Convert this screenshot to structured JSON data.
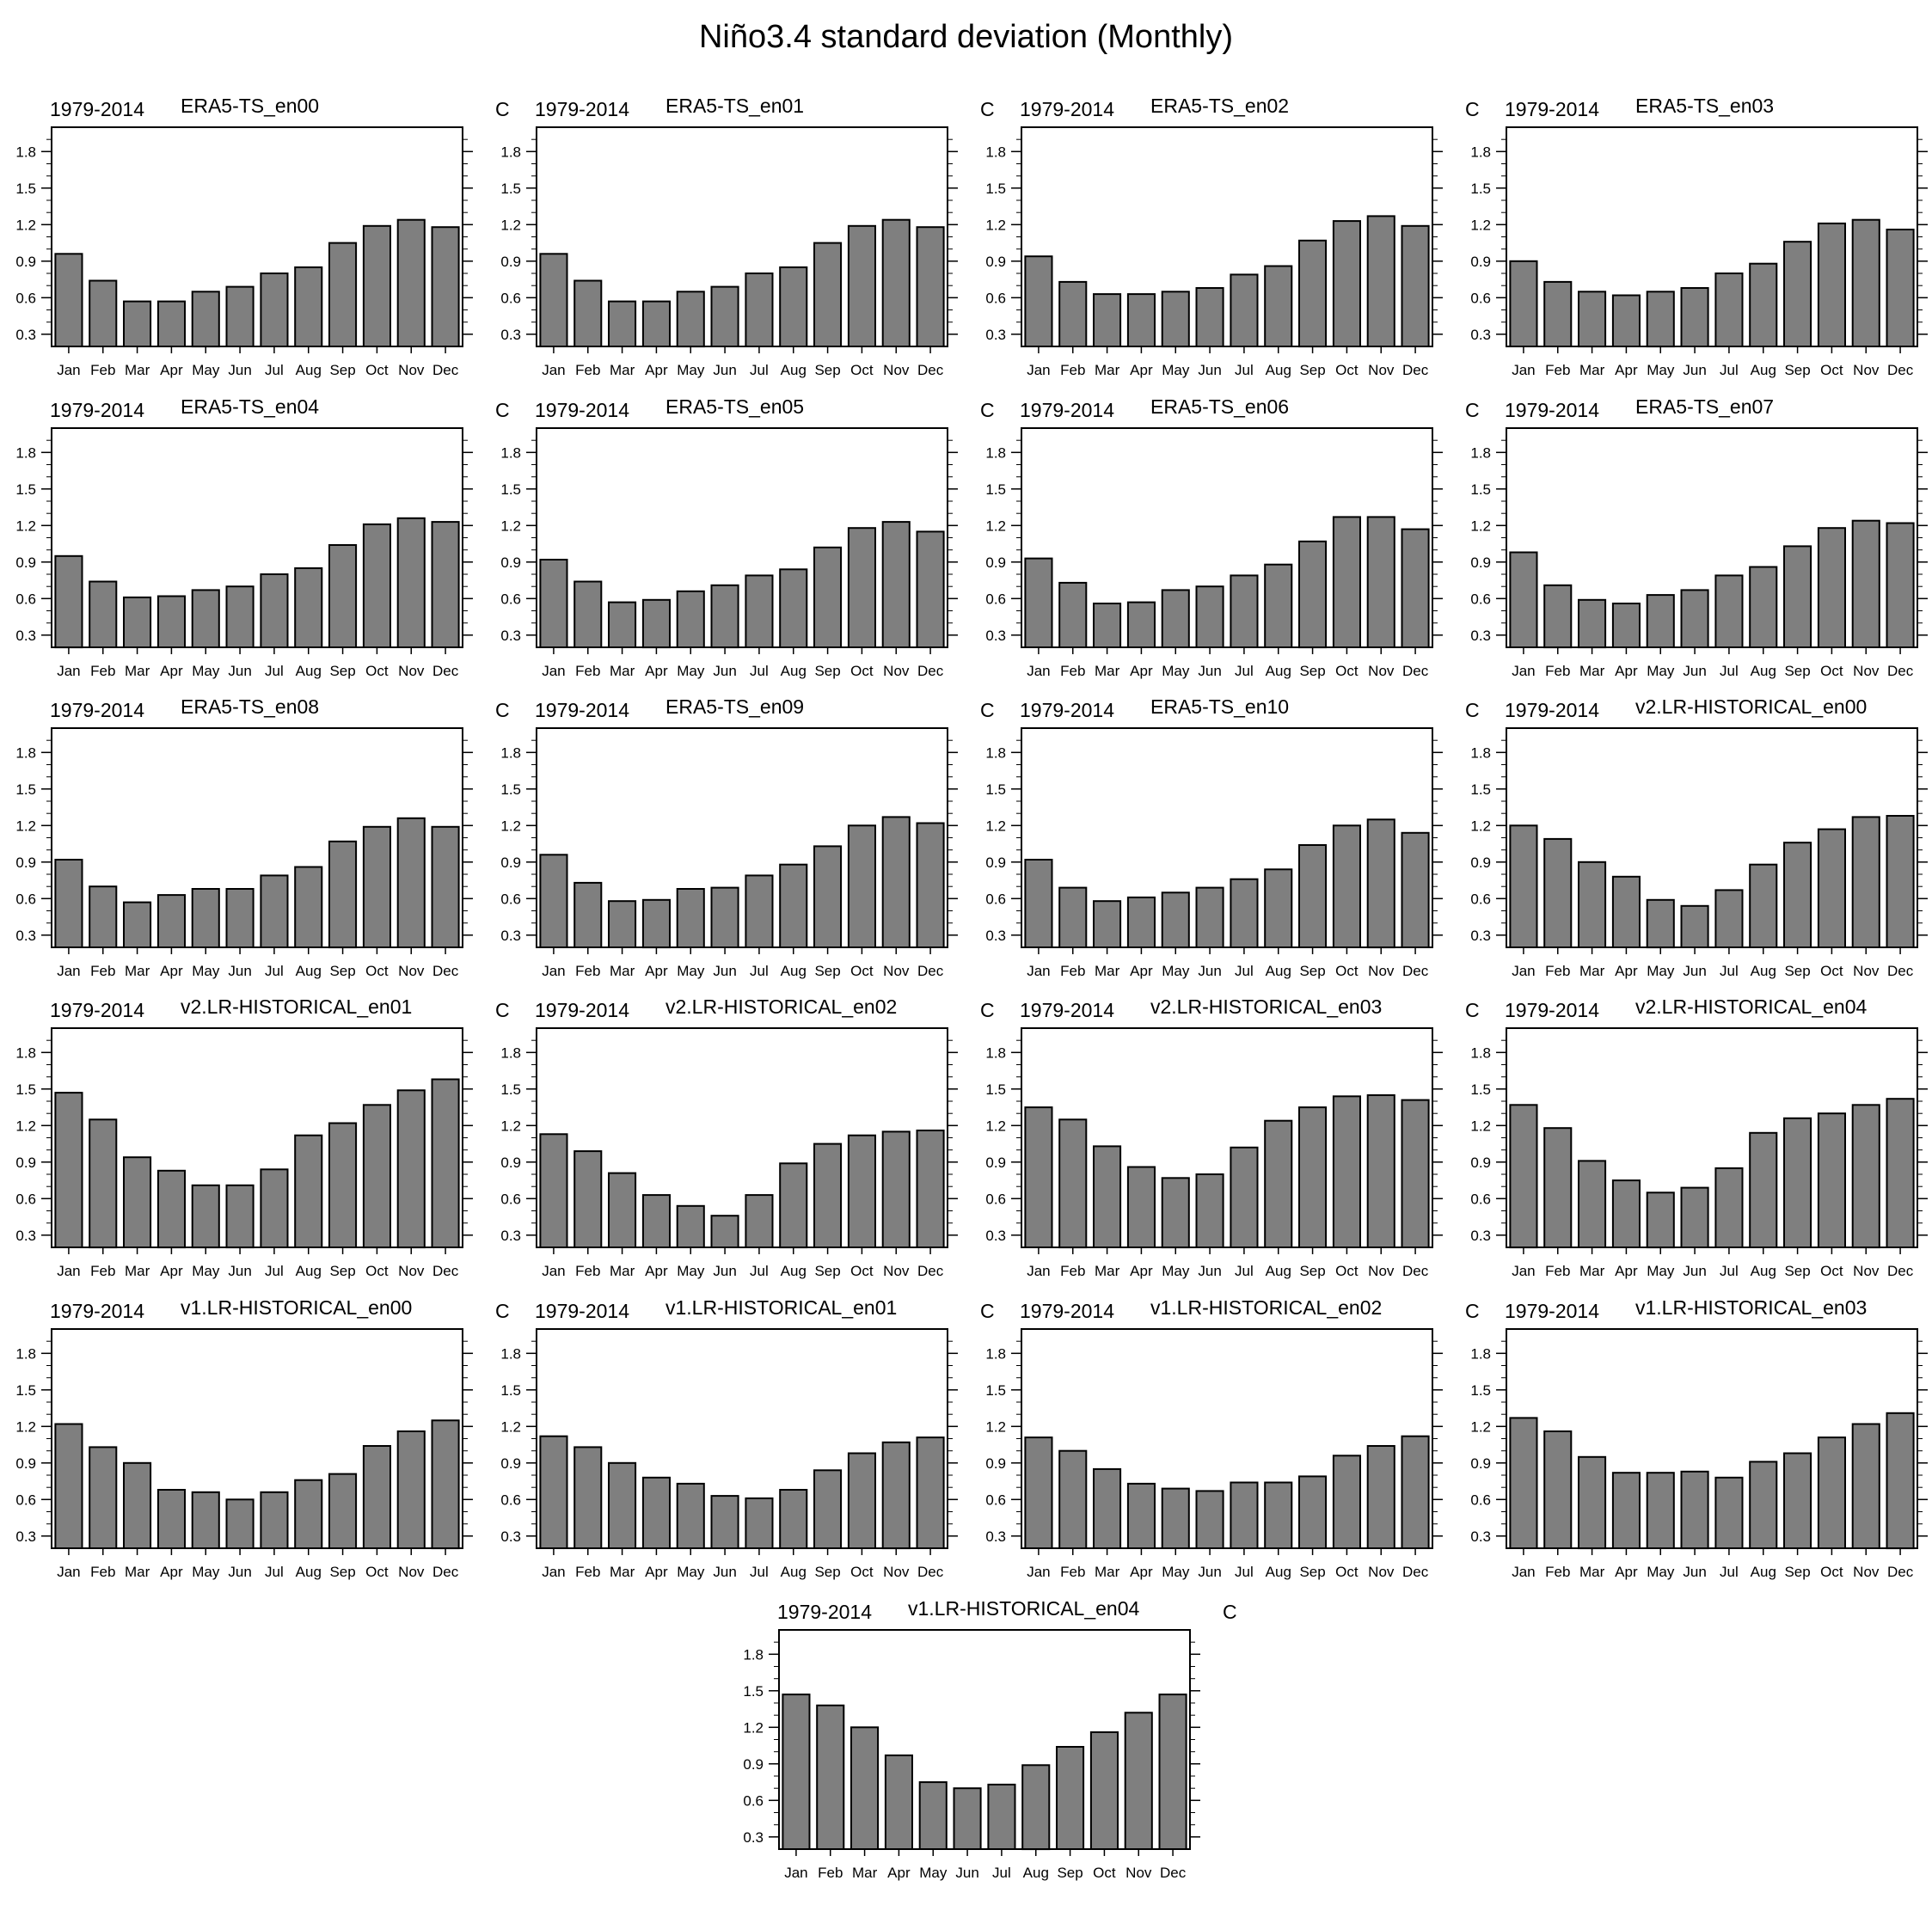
{
  "figure": {
    "title": "Niño3.4 standard deviation (Monthly)"
  },
  "chart_data": [
    {
      "type": "bar",
      "period": "1979-2014",
      "title": "ERA5-TS_en00",
      "units": "C",
      "categories": [
        "Jan",
        "Feb",
        "Mar",
        "Apr",
        "May",
        "Jun",
        "Jul",
        "Aug",
        "Sep",
        "Oct",
        "Nov",
        "Dec"
      ],
      "values": [
        0.96,
        0.74,
        0.57,
        0.57,
        0.65,
        0.69,
        0.8,
        0.85,
        1.05,
        1.19,
        1.24,
        1.18
      ],
      "ylim": [
        0.2,
        2.0
      ],
      "yticks": [
        "0.3",
        "0.6",
        "0.9",
        "1.2",
        "1.5",
        "1.8"
      ]
    },
    {
      "type": "bar",
      "period": "1979-2014",
      "title": "ERA5-TS_en01",
      "units": "C",
      "categories": [
        "Jan",
        "Feb",
        "Mar",
        "Apr",
        "May",
        "Jun",
        "Jul",
        "Aug",
        "Sep",
        "Oct",
        "Nov",
        "Dec"
      ],
      "values": [
        0.96,
        0.74,
        0.57,
        0.57,
        0.65,
        0.69,
        0.8,
        0.85,
        1.05,
        1.19,
        1.24,
        1.18
      ],
      "ylim": [
        0.2,
        2.0
      ],
      "yticks": [
        "0.3",
        "0.6",
        "0.9",
        "1.2",
        "1.5",
        "1.8"
      ]
    },
    {
      "type": "bar",
      "period": "1979-2014",
      "title": "ERA5-TS_en02",
      "units": "C",
      "categories": [
        "Jan",
        "Feb",
        "Mar",
        "Apr",
        "May",
        "Jun",
        "Jul",
        "Aug",
        "Sep",
        "Oct",
        "Nov",
        "Dec"
      ],
      "values": [
        0.94,
        0.73,
        0.63,
        0.63,
        0.65,
        0.68,
        0.79,
        0.86,
        1.07,
        1.23,
        1.27,
        1.19
      ],
      "ylim": [
        0.2,
        2.0
      ],
      "yticks": [
        "0.3",
        "0.6",
        "0.9",
        "1.2",
        "1.5",
        "1.8"
      ]
    },
    {
      "type": "bar",
      "period": "1979-2014",
      "title": "ERA5-TS_en03",
      "units": "C",
      "categories": [
        "Jan",
        "Feb",
        "Mar",
        "Apr",
        "May",
        "Jun",
        "Jul",
        "Aug",
        "Sep",
        "Oct",
        "Nov",
        "Dec"
      ],
      "values": [
        0.9,
        0.73,
        0.65,
        0.62,
        0.65,
        0.68,
        0.8,
        0.88,
        1.06,
        1.21,
        1.24,
        1.16
      ],
      "ylim": [
        0.2,
        2.0
      ],
      "yticks": [
        "0.3",
        "0.6",
        "0.9",
        "1.2",
        "1.5",
        "1.8"
      ]
    },
    {
      "type": "bar",
      "period": "1979-2014",
      "title": "ERA5-TS_en04",
      "units": "C",
      "categories": [
        "Jan",
        "Feb",
        "Mar",
        "Apr",
        "May",
        "Jun",
        "Jul",
        "Aug",
        "Sep",
        "Oct",
        "Nov",
        "Dec"
      ],
      "values": [
        0.95,
        0.74,
        0.61,
        0.62,
        0.67,
        0.7,
        0.8,
        0.85,
        1.04,
        1.21,
        1.26,
        1.23
      ],
      "ylim": [
        0.2,
        2.0
      ],
      "yticks": [
        "0.3",
        "0.6",
        "0.9",
        "1.2",
        "1.5",
        "1.8"
      ]
    },
    {
      "type": "bar",
      "period": "1979-2014",
      "title": "ERA5-TS_en05",
      "units": "C",
      "categories": [
        "Jan",
        "Feb",
        "Mar",
        "Apr",
        "May",
        "Jun",
        "Jul",
        "Aug",
        "Sep",
        "Oct",
        "Nov",
        "Dec"
      ],
      "values": [
        0.92,
        0.74,
        0.57,
        0.59,
        0.66,
        0.71,
        0.79,
        0.84,
        1.02,
        1.18,
        1.23,
        1.15
      ],
      "ylim": [
        0.2,
        2.0
      ],
      "yticks": [
        "0.3",
        "0.6",
        "0.9",
        "1.2",
        "1.5",
        "1.8"
      ]
    },
    {
      "type": "bar",
      "period": "1979-2014",
      "title": "ERA5-TS_en06",
      "units": "C",
      "categories": [
        "Jan",
        "Feb",
        "Mar",
        "Apr",
        "May",
        "Jun",
        "Jul",
        "Aug",
        "Sep",
        "Oct",
        "Nov",
        "Dec"
      ],
      "values": [
        0.93,
        0.73,
        0.56,
        0.57,
        0.67,
        0.7,
        0.79,
        0.88,
        1.07,
        1.27,
        1.27,
        1.17
      ],
      "ylim": [
        0.2,
        2.0
      ],
      "yticks": [
        "0.3",
        "0.6",
        "0.9",
        "1.2",
        "1.5",
        "1.8"
      ]
    },
    {
      "type": "bar",
      "period": "1979-2014",
      "title": "ERA5-TS_en07",
      "units": "C",
      "categories": [
        "Jan",
        "Feb",
        "Mar",
        "Apr",
        "May",
        "Jun",
        "Jul",
        "Aug",
        "Sep",
        "Oct",
        "Nov",
        "Dec"
      ],
      "values": [
        0.98,
        0.71,
        0.59,
        0.56,
        0.63,
        0.67,
        0.79,
        0.86,
        1.03,
        1.18,
        1.24,
        1.22
      ],
      "ylim": [
        0.2,
        2.0
      ],
      "yticks": [
        "0.3",
        "0.6",
        "0.9",
        "1.2",
        "1.5",
        "1.8"
      ]
    },
    {
      "type": "bar",
      "period": "1979-2014",
      "title": "ERA5-TS_en08",
      "units": "C",
      "categories": [
        "Jan",
        "Feb",
        "Mar",
        "Apr",
        "May",
        "Jun",
        "Jul",
        "Aug",
        "Sep",
        "Oct",
        "Nov",
        "Dec"
      ],
      "values": [
        0.92,
        0.7,
        0.57,
        0.63,
        0.68,
        0.68,
        0.79,
        0.86,
        1.07,
        1.19,
        1.26,
        1.19
      ],
      "ylim": [
        0.2,
        2.0
      ],
      "yticks": [
        "0.3",
        "0.6",
        "0.9",
        "1.2",
        "1.5",
        "1.8"
      ]
    },
    {
      "type": "bar",
      "period": "1979-2014",
      "title": "ERA5-TS_en09",
      "units": "C",
      "categories": [
        "Jan",
        "Feb",
        "Mar",
        "Apr",
        "May",
        "Jun",
        "Jul",
        "Aug",
        "Sep",
        "Oct",
        "Nov",
        "Dec"
      ],
      "values": [
        0.96,
        0.73,
        0.58,
        0.59,
        0.68,
        0.69,
        0.79,
        0.88,
        1.03,
        1.2,
        1.27,
        1.22
      ],
      "ylim": [
        0.2,
        2.0
      ],
      "yticks": [
        "0.3",
        "0.6",
        "0.9",
        "1.2",
        "1.5",
        "1.8"
      ]
    },
    {
      "type": "bar",
      "period": "1979-2014",
      "title": "ERA5-TS_en10",
      "units": "C",
      "categories": [
        "Jan",
        "Feb",
        "Mar",
        "Apr",
        "May",
        "Jun",
        "Jul",
        "Aug",
        "Sep",
        "Oct",
        "Nov",
        "Dec"
      ],
      "values": [
        0.92,
        0.69,
        0.58,
        0.61,
        0.65,
        0.69,
        0.76,
        0.84,
        1.04,
        1.2,
        1.25,
        1.14
      ],
      "ylim": [
        0.2,
        2.0
      ],
      "yticks": [
        "0.3",
        "0.6",
        "0.9",
        "1.2",
        "1.5",
        "1.8"
      ]
    },
    {
      "type": "bar",
      "period": "1979-2014",
      "title": "v2.LR-HISTORICAL_en00",
      "units": "C",
      "categories": [
        "Jan",
        "Feb",
        "Mar",
        "Apr",
        "May",
        "Jun",
        "Jul",
        "Aug",
        "Sep",
        "Oct",
        "Nov",
        "Dec"
      ],
      "values": [
        1.2,
        1.09,
        0.9,
        0.78,
        0.59,
        0.54,
        0.67,
        0.88,
        1.06,
        1.17,
        1.27,
        1.28
      ],
      "ylim": [
        0.2,
        2.0
      ],
      "yticks": [
        "0.3",
        "0.6",
        "0.9",
        "1.2",
        "1.5",
        "1.8"
      ]
    },
    {
      "type": "bar",
      "period": "1979-2014",
      "title": "v2.LR-HISTORICAL_en01",
      "units": "C",
      "categories": [
        "Jan",
        "Feb",
        "Mar",
        "Apr",
        "May",
        "Jun",
        "Jul",
        "Aug",
        "Sep",
        "Oct",
        "Nov",
        "Dec"
      ],
      "values": [
        1.47,
        1.25,
        0.94,
        0.83,
        0.71,
        0.71,
        0.84,
        1.12,
        1.22,
        1.37,
        1.49,
        1.58
      ],
      "ylim": [
        0.2,
        2.0
      ],
      "yticks": [
        "0.3",
        "0.6",
        "0.9",
        "1.2",
        "1.5",
        "1.8"
      ]
    },
    {
      "type": "bar",
      "period": "1979-2014",
      "title": "v2.LR-HISTORICAL_en02",
      "units": "C",
      "categories": [
        "Jan",
        "Feb",
        "Mar",
        "Apr",
        "May",
        "Jun",
        "Jul",
        "Aug",
        "Sep",
        "Oct",
        "Nov",
        "Dec"
      ],
      "values": [
        1.13,
        0.99,
        0.81,
        0.63,
        0.54,
        0.46,
        0.63,
        0.89,
        1.05,
        1.12,
        1.15,
        1.16
      ],
      "ylim": [
        0.2,
        2.0
      ],
      "yticks": [
        "0.3",
        "0.6",
        "0.9",
        "1.2",
        "1.5",
        "1.8"
      ]
    },
    {
      "type": "bar",
      "period": "1979-2014",
      "title": "v2.LR-HISTORICAL_en03",
      "units": "C",
      "categories": [
        "Jan",
        "Feb",
        "Mar",
        "Apr",
        "May",
        "Jun",
        "Jul",
        "Aug",
        "Sep",
        "Oct",
        "Nov",
        "Dec"
      ],
      "values": [
        1.35,
        1.25,
        1.03,
        0.86,
        0.77,
        0.8,
        1.02,
        1.24,
        1.35,
        1.44,
        1.45,
        1.41
      ],
      "ylim": [
        0.2,
        2.0
      ],
      "yticks": [
        "0.3",
        "0.6",
        "0.9",
        "1.2",
        "1.5",
        "1.8"
      ]
    },
    {
      "type": "bar",
      "period": "1979-2014",
      "title": "v2.LR-HISTORICAL_en04",
      "units": "C",
      "categories": [
        "Jan",
        "Feb",
        "Mar",
        "Apr",
        "May",
        "Jun",
        "Jul",
        "Aug",
        "Sep",
        "Oct",
        "Nov",
        "Dec"
      ],
      "values": [
        1.37,
        1.18,
        0.91,
        0.75,
        0.65,
        0.69,
        0.85,
        1.14,
        1.26,
        1.3,
        1.37,
        1.42
      ],
      "ylim": [
        0.2,
        2.0
      ],
      "yticks": [
        "0.3",
        "0.6",
        "0.9",
        "1.2",
        "1.5",
        "1.8"
      ]
    },
    {
      "type": "bar",
      "period": "1979-2014",
      "title": "v1.LR-HISTORICAL_en00",
      "units": "C",
      "categories": [
        "Jan",
        "Feb",
        "Mar",
        "Apr",
        "May",
        "Jun",
        "Jul",
        "Aug",
        "Sep",
        "Oct",
        "Nov",
        "Dec"
      ],
      "values": [
        1.22,
        1.03,
        0.9,
        0.68,
        0.66,
        0.6,
        0.66,
        0.76,
        0.81,
        1.04,
        1.16,
        1.25
      ],
      "ylim": [
        0.2,
        2.0
      ],
      "yticks": [
        "0.3",
        "0.6",
        "0.9",
        "1.2",
        "1.5",
        "1.8"
      ]
    },
    {
      "type": "bar",
      "period": "1979-2014",
      "title": "v1.LR-HISTORICAL_en01",
      "units": "C",
      "categories": [
        "Jan",
        "Feb",
        "Mar",
        "Apr",
        "May",
        "Jun",
        "Jul",
        "Aug",
        "Sep",
        "Oct",
        "Nov",
        "Dec"
      ],
      "values": [
        1.12,
        1.03,
        0.9,
        0.78,
        0.73,
        0.63,
        0.61,
        0.68,
        0.84,
        0.98,
        1.07,
        1.11
      ],
      "ylim": [
        0.2,
        2.0
      ],
      "yticks": [
        "0.3",
        "0.6",
        "0.9",
        "1.2",
        "1.5",
        "1.8"
      ]
    },
    {
      "type": "bar",
      "period": "1979-2014",
      "title": "v1.LR-HISTORICAL_en02",
      "units": "C",
      "categories": [
        "Jan",
        "Feb",
        "Mar",
        "Apr",
        "May",
        "Jun",
        "Jul",
        "Aug",
        "Sep",
        "Oct",
        "Nov",
        "Dec"
      ],
      "values": [
        1.11,
        1.0,
        0.85,
        0.73,
        0.69,
        0.67,
        0.74,
        0.74,
        0.79,
        0.96,
        1.04,
        1.12
      ],
      "ylim": [
        0.2,
        2.0
      ],
      "yticks": [
        "0.3",
        "0.6",
        "0.9",
        "1.2",
        "1.5",
        "1.8"
      ]
    },
    {
      "type": "bar",
      "period": "1979-2014",
      "title": "v1.LR-HISTORICAL_en03",
      "units": "C",
      "categories": [
        "Jan",
        "Feb",
        "Mar",
        "Apr",
        "May",
        "Jun",
        "Jul",
        "Aug",
        "Sep",
        "Oct",
        "Nov",
        "Dec"
      ],
      "values": [
        1.27,
        1.16,
        0.95,
        0.82,
        0.82,
        0.83,
        0.78,
        0.91,
        0.98,
        1.11,
        1.22,
        1.31
      ],
      "ylim": [
        0.2,
        2.0
      ],
      "yticks": [
        "0.3",
        "0.6",
        "0.9",
        "1.2",
        "1.5",
        "1.8"
      ]
    },
    {
      "type": "bar",
      "period": "1979-2014",
      "title": "v1.LR-HISTORICAL_en04",
      "units": "C",
      "categories": [
        "Jan",
        "Feb",
        "Mar",
        "Apr",
        "May",
        "Jun",
        "Jul",
        "Aug",
        "Sep",
        "Oct",
        "Nov",
        "Dec"
      ],
      "values": [
        1.47,
        1.38,
        1.2,
        0.97,
        0.75,
        0.7,
        0.73,
        0.89,
        1.04,
        1.16,
        1.32,
        1.47
      ],
      "ylim": [
        0.2,
        2.0
      ],
      "yticks": [
        "0.3",
        "0.6",
        "0.9",
        "1.2",
        "1.5",
        "1.8"
      ]
    }
  ]
}
